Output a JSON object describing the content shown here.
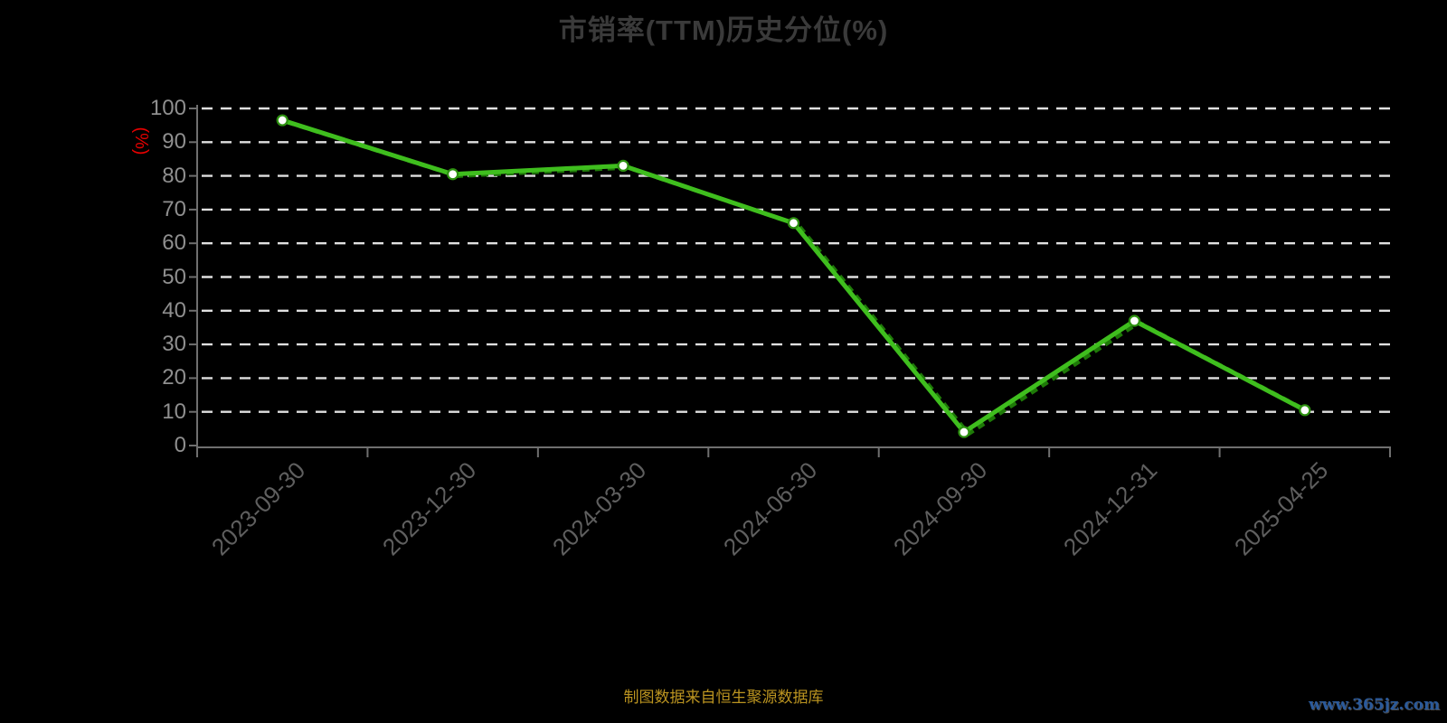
{
  "page": {
    "background": "#000000"
  },
  "chart_data": {
    "type": "line",
    "title": "市销率(TTM)历史分位(%)",
    "categories": [
      "2023-09-30",
      "2023-12-30",
      "2024-03-30",
      "2024-06-30",
      "2024-09-30",
      "2024-12-31",
      "2025-04-25"
    ],
    "series": [
      {
        "name": "市销率(TTM)历史分位",
        "values": [
          96.5,
          80.5,
          83,
          66,
          4,
          37,
          10.5
        ]
      }
    ],
    "xlabel": "",
    "ylabel": "(%)",
    "ylim": [
      0,
      100
    ],
    "y_tick_step": 10,
    "y_tick_labels": [
      "0",
      "10",
      "20",
      "30",
      "40",
      "50",
      "60",
      "70",
      "80",
      "90",
      "100"
    ],
    "grid": "horizontal-dashed-white",
    "legend_position": "none",
    "marker": "white-circle-green-ring"
  },
  "footer": {
    "source_note": "制图数据来自恒生聚源数据库",
    "watermark": "www.365jz.com"
  },
  "colors": {
    "background": "#000000",
    "title": "#3a3a3a",
    "line": "#3fbe1e",
    "line_dash_shadow": "#1e7a08",
    "marker_fill": "#ffffff",
    "marker_ring": "#2d9110",
    "gridline": "#e0e0e0",
    "axis": "#6f6f6f",
    "y_label": "#8f8f8f",
    "x_label": "#5f5f5f",
    "unit_label": "#e60000",
    "footer_note": "#bb9420",
    "watermark": "#2a5a9c"
  }
}
